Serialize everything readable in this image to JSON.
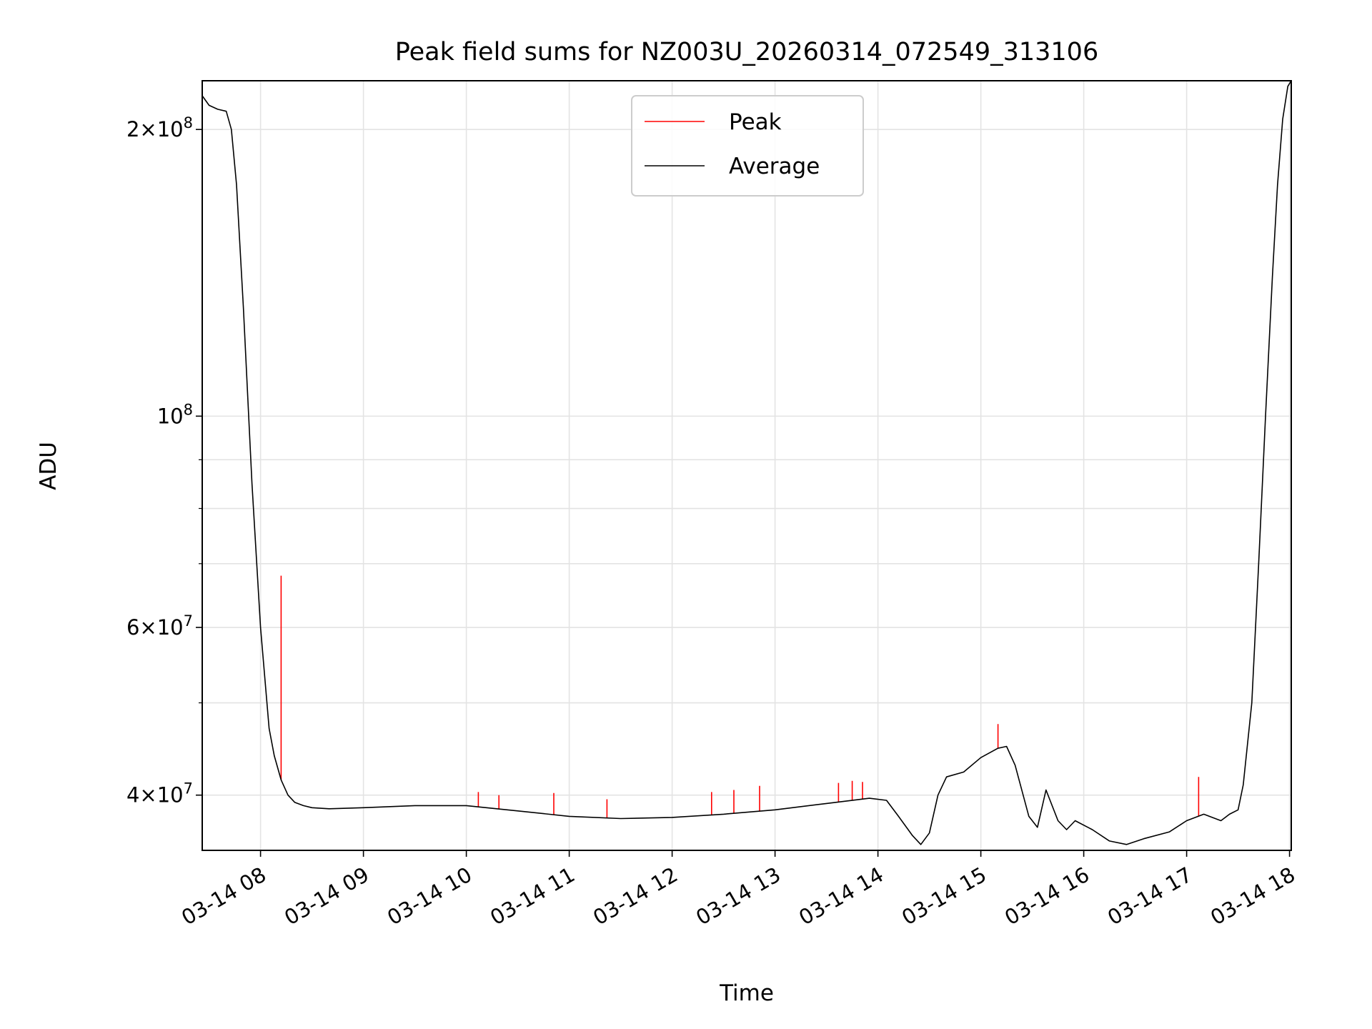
{
  "chart_data": {
    "type": "line",
    "title": "Peak field sums for NZ003U_20260314_072549_313106",
    "xlabel": "Time",
    "ylabel": "ADU",
    "y_scale": "log",
    "ylim": [
      35000000,
      225000000
    ],
    "xlim": [
      "2026-03-14 07:26",
      "2026-03-14 18:01"
    ],
    "grid": true,
    "legend_position": "upper center",
    "x_ticks": [
      "03-14 08",
      "03-14 09",
      "03-14 10",
      "03-14 11",
      "03-14 12",
      "03-14 13",
      "03-14 14",
      "03-14 15",
      "03-14 16",
      "03-14 17",
      "03-14 18"
    ],
    "x_tick_times": [
      "2026-03-14 08:00",
      "2026-03-14 09:00",
      "2026-03-14 10:00",
      "2026-03-14 11:00",
      "2026-03-14 12:00",
      "2026-03-14 13:00",
      "2026-03-14 14:00",
      "2026-03-14 15:00",
      "2026-03-14 16:00",
      "2026-03-14 17:00",
      "2026-03-14 18:00"
    ],
    "y_major_ticks": [
      {
        "value": 40000000,
        "mantissa": "4",
        "exponent": "7"
      },
      {
        "value": 60000000,
        "mantissa": "6",
        "exponent": "7"
      },
      {
        "value": 100000000,
        "mantissa": "",
        "exponent": "8"
      },
      {
        "value": 200000000,
        "mantissa": "2",
        "exponent": "8"
      }
    ],
    "y_minor_ticks": [
      50000000,
      70000000,
      80000000,
      90000000
    ],
    "series": [
      {
        "name": "Average",
        "color": "#000000",
        "x": [
          "2026-03-14 07:26",
          "2026-03-14 07:30",
          "2026-03-14 07:35",
          "2026-03-14 07:40",
          "2026-03-14 07:43",
          "2026-03-14 07:46",
          "2026-03-14 07:50",
          "2026-03-14 07:55",
          "2026-03-14 08:00",
          "2026-03-14 08:05",
          "2026-03-14 08:08",
          "2026-03-14 08:12",
          "2026-03-14 08:16",
          "2026-03-14 08:20",
          "2026-03-14 08:25",
          "2026-03-14 08:30",
          "2026-03-14 08:40",
          "2026-03-14 09:00",
          "2026-03-14 09:30",
          "2026-03-14 10:00",
          "2026-03-14 10:30",
          "2026-03-14 11:00",
          "2026-03-14 11:30",
          "2026-03-14 12:00",
          "2026-03-14 12:30",
          "2026-03-14 13:00",
          "2026-03-14 13:30",
          "2026-03-14 13:55",
          "2026-03-14 14:05",
          "2026-03-14 14:12",
          "2026-03-14 14:20",
          "2026-03-14 14:25",
          "2026-03-14 14:30",
          "2026-03-14 14:35",
          "2026-03-14 14:40",
          "2026-03-14 14:50",
          "2026-03-14 15:00",
          "2026-03-14 15:10",
          "2026-03-14 15:15",
          "2026-03-14 15:20",
          "2026-03-14 15:28",
          "2026-03-14 15:33",
          "2026-03-14 15:38",
          "2026-03-14 15:45",
          "2026-03-14 15:50",
          "2026-03-14 15:55",
          "2026-03-14 16:05",
          "2026-03-14 16:15",
          "2026-03-14 16:25",
          "2026-03-14 16:35",
          "2026-03-14 16:50",
          "2026-03-14 17:00",
          "2026-03-14 17:10",
          "2026-03-14 17:20",
          "2026-03-14 17:25",
          "2026-03-14 17:30",
          "2026-03-14 17:33",
          "2026-03-14 17:38",
          "2026-03-14 17:42",
          "2026-03-14 17:46",
          "2026-03-14 17:50",
          "2026-03-14 17:53",
          "2026-03-14 17:56",
          "2026-03-14 17:59",
          "2026-03-14 18:01"
        ],
        "values": [
          217000000,
          212000000,
          210000000,
          209000000,
          200000000,
          175000000,
          130000000,
          85000000,
          60000000,
          47000000,
          44000000,
          41500000,
          40000000,
          39300000,
          39000000,
          38800000,
          38700000,
          38800000,
          39000000,
          39000000,
          38500000,
          38000000,
          37800000,
          37900000,
          38200000,
          38600000,
          39200000,
          39700000,
          39500000,
          38000000,
          36300000,
          35500000,
          36500000,
          40000000,
          41800000,
          42300000,
          43800000,
          44800000,
          45000000,
          43000000,
          38000000,
          37000000,
          40500000,
          37600000,
          36800000,
          37600000,
          36800000,
          35800000,
          35500000,
          36000000,
          36600000,
          37600000,
          38200000,
          37600000,
          38200000,
          38600000,
          41000000,
          50000000,
          70000000,
          100000000,
          140000000,
          175000000,
          205000000,
          222000000,
          225000000
        ]
      },
      {
        "name": "Peak",
        "color": "#ff0000",
        "x": [
          "2026-03-14 08:12",
          "2026-03-14 10:07",
          "2026-03-14 10:19",
          "2026-03-14 10:51",
          "2026-03-14 11:22",
          "2026-03-14 12:23",
          "2026-03-14 12:36",
          "2026-03-14 12:51",
          "2026-03-14 13:37",
          "2026-03-14 13:45",
          "2026-03-14 13:51",
          "2026-03-14 15:10",
          "2026-03-14 17:07"
        ],
        "values": [
          68000000,
          40300000,
          40000000,
          40200000,
          39600000,
          40300000,
          40500000,
          40900000,
          41200000,
          41400000,
          41300000,
          47500000,
          41800000
        ]
      }
    ]
  }
}
